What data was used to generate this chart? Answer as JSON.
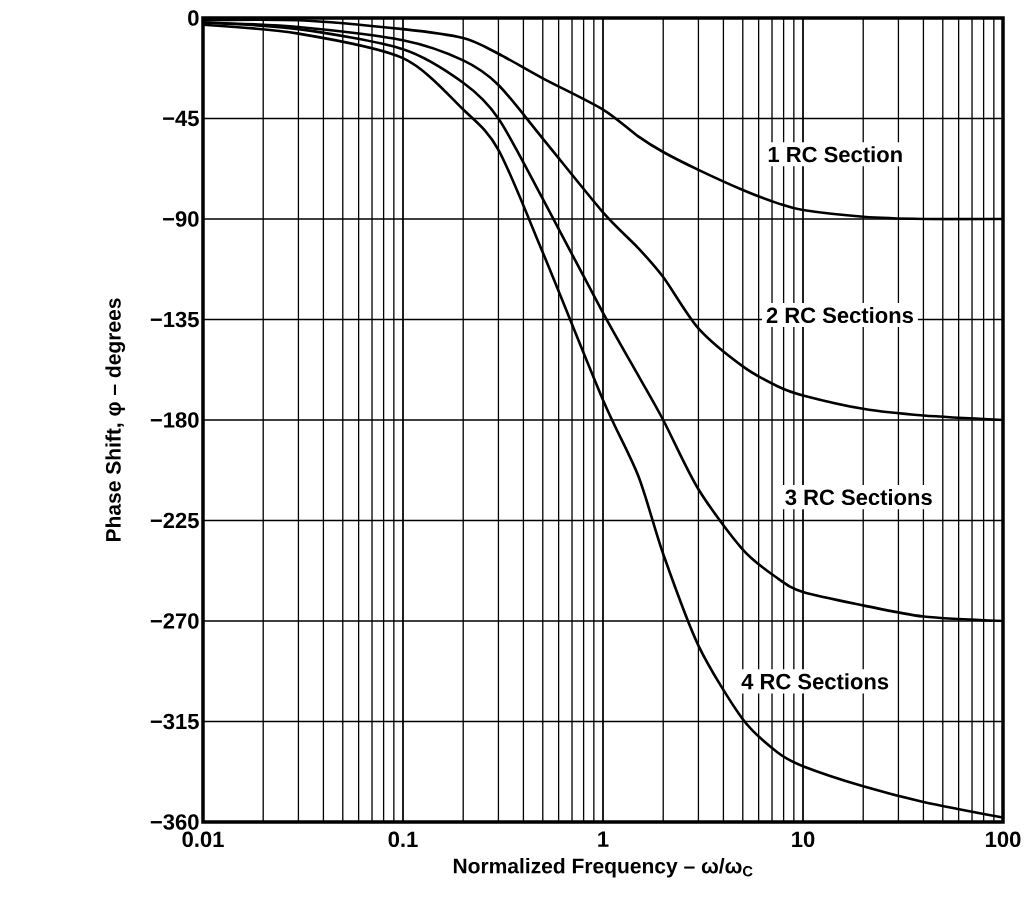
{
  "chart_data": {
    "type": "line",
    "xlabel": "Normalized Frequency – ω/ω$_{C}$",
    "ylabel": "Phase Shift, φ – degrees",
    "log": "x",
    "grid": true,
    "xlim": [
      0.01,
      100
    ],
    "xticks": [
      0.01,
      0.1,
      1,
      10,
      100
    ],
    "ylim": [
      -360,
      0
    ],
    "yticks": [
      0,
      {
        "value": -45,
        "label": "−45"
      },
      {
        "value": -90,
        "label": "−90"
      },
      {
        "value": -135,
        "label": "−135"
      },
      {
        "value": -180,
        "label": "−180"
      },
      {
        "value": -225,
        "label": "−225"
      },
      {
        "value": -270,
        "label": "−270"
      },
      {
        "value": -315,
        "label": "−315"
      },
      {
        "value": -360,
        "label": "−360"
      }
    ],
    "x": [
      0.01,
      0.03,
      0.1,
      0.2,
      0.3,
      0.5,
      1,
      1.5,
      2,
      3,
      5,
      7.5,
      10,
      20,
      40,
      100
    ],
    "series": [
      {
        "name": "1 RC Section",
        "color": "#000000",
        "values": [
          -1,
          -1,
          -5,
          -9,
          -16,
          -27,
          -41,
          -53,
          -60,
          -68,
          -77,
          -83,
          -86,
          -89,
          -90,
          -90
        ]
      },
      {
        "name": "2 RC Sections",
        "color": "#000000",
        "values": [
          -2,
          -4,
          -10,
          -19,
          -30,
          -54,
          -87,
          -103,
          -116,
          -139,
          -156,
          -165,
          -169,
          -175,
          -178,
          -180
        ]
      },
      {
        "name": "3 RC Sections",
        "color": "#000000",
        "values": [
          -2,
          -5,
          -14,
          -29,
          -45,
          -81,
          -132,
          -160,
          -180,
          -211,
          -238,
          -251,
          -257,
          -263,
          -268,
          -270
        ]
      },
      {
        "name": "4 RC Sections",
        "color": "#000000",
        "values": [
          -3,
          -7,
          -18,
          -41,
          -59,
          -105,
          -171,
          -205,
          -240,
          -281,
          -314,
          -329,
          -335,
          -344,
          -351,
          -358
        ]
      }
    ]
  }
}
